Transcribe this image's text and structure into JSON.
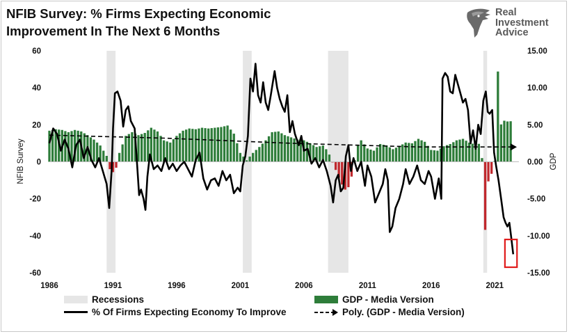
{
  "title_line1": "NFIB Survey:  % Firms Expecting Economic",
  "title_line2": "Improvement In The  Next 6 Months",
  "logo": {
    "line1": "Real",
    "line2": "Investment",
    "line3": "Advice",
    "icon": "eagle-head-icon"
  },
  "legend": {
    "recessions": "Recessions",
    "gdp": "GDP - Media Version",
    "line": "% Of Firms Expecting Economy To Improve",
    "poly": "Poly. (GDP - Media Version)"
  },
  "colors": {
    "gdp_positive": "#2e7d3a",
    "gdp_negative": "#c0282d",
    "recession": "#e6e6e6",
    "line": "#000000",
    "highlight_box": "#e01a1a"
  },
  "chart_data": {
    "type": "bar+line",
    "title": "NFIB Survey:  % Firms Expecting Economic Improvement In The  Next 6 Months",
    "ylabel": "NFIB Survey",
    "y2label": "GDP",
    "xlim": [
      1986,
      2022.9
    ],
    "ylim": [
      -60,
      60
    ],
    "y2lim": [
      -15,
      15
    ],
    "xticks": [
      "1986",
      "1991",
      "1996",
      "2001",
      "2006",
      "2011",
      "2016",
      "2021"
    ],
    "yticks": [
      "60",
      "40",
      "20",
      "0",
      "-20",
      "-40",
      "-60"
    ],
    "y2ticks": [
      "15.00",
      "10.00",
      "5.00",
      "0.00",
      "-5.00",
      "-10.00",
      "-15.00"
    ],
    "grid": false,
    "legend_position": "bottom",
    "recessions": [
      [
        1990.5,
        1991.2
      ],
      [
        2001.2,
        2001.9
      ],
      [
        2007.9,
        2009.5
      ],
      [
        2020.1,
        2020.4
      ]
    ],
    "gdp_series": {
      "name": "GDP - Media Version",
      "points": [
        [
          1986,
          4.2
        ],
        [
          1986.5,
          4.4
        ],
        [
          1987,
          4.3
        ],
        [
          1987.5,
          4.0
        ],
        [
          1988,
          4.3
        ],
        [
          1988.5,
          4.1
        ],
        [
          1989,
          3.6
        ],
        [
          1989.5,
          3.0
        ],
        [
          1990,
          2.2
        ],
        [
          1990.5,
          0.8
        ],
        [
          1990.75,
          -1.0
        ],
        [
          1991,
          -1.4
        ],
        [
          1991.25,
          -0.8
        ],
        [
          1991.5,
          1.2
        ],
        [
          1992,
          3.5
        ],
        [
          1992.5,
          4.0
        ],
        [
          1993,
          3.6
        ],
        [
          1993.5,
          3.9
        ],
        [
          1994,
          4.6
        ],
        [
          1994.5,
          4.1
        ],
        [
          1995,
          2.9
        ],
        [
          1995.5,
          2.6
        ],
        [
          1996,
          3.5
        ],
        [
          1996.5,
          4.2
        ],
        [
          1997,
          4.5
        ],
        [
          1997.5,
          4.4
        ],
        [
          1998,
          4.6
        ],
        [
          1998.5,
          4.5
        ],
        [
          1999,
          4.6
        ],
        [
          1999.5,
          4.7
        ],
        [
          2000,
          4.9
        ],
        [
          2000.5,
          3.8
        ],
        [
          2001,
          1.2
        ],
        [
          2001.5,
          0.2
        ],
        [
          2002,
          1.2
        ],
        [
          2002.5,
          2.0
        ],
        [
          2003,
          2.9
        ],
        [
          2003.5,
          4.0
        ],
        [
          2004,
          4.1
        ],
        [
          2004.5,
          3.6
        ],
        [
          2005,
          3.3
        ],
        [
          2005.5,
          3.0
        ],
        [
          2006,
          2.9
        ],
        [
          2006.5,
          2.5
        ],
        [
          2007,
          2.0
        ],
        [
          2007.5,
          2.2
        ],
        [
          2007.9,
          1.4
        ],
        [
          2008.3,
          -0.3
        ],
        [
          2008.6,
          -1.5
        ],
        [
          2008.9,
          -2.8
        ],
        [
          2009.3,
          -3.9
        ],
        [
          2009.6,
          -3.2
        ],
        [
          2009.9,
          -0.8
        ],
        [
          2010.2,
          2.2
        ],
        [
          2010.5,
          2.9
        ],
        [
          2011,
          1.8
        ],
        [
          2011.5,
          1.5
        ],
        [
          2012,
          2.4
        ],
        [
          2012.5,
          2.2
        ],
        [
          2013,
          1.7
        ],
        [
          2013.5,
          2.1
        ],
        [
          2014,
          2.6
        ],
        [
          2014.5,
          2.5
        ],
        [
          2015,
          3.1
        ],
        [
          2015.5,
          2.7
        ],
        [
          2016,
          1.6
        ],
        [
          2016.5,
          1.5
        ],
        [
          2017,
          2.1
        ],
        [
          2017.5,
          2.4
        ],
        [
          2018,
          2.9
        ],
        [
          2018.5,
          3.1
        ],
        [
          2019,
          2.6
        ],
        [
          2019.5,
          2.3
        ],
        [
          2019.9,
          2.5
        ],
        [
          2020.0,
          0.5
        ],
        [
          2020.1,
          -5.0
        ],
        [
          2020.25,
          -9.2
        ],
        [
          2020.4,
          -3.0
        ],
        [
          2020.6,
          -2.3
        ],
        [
          2020.8,
          -1.4
        ],
        [
          2021.05,
          0.5
        ],
        [
          2021.25,
          12.2
        ],
        [
          2021.45,
          4.9
        ],
        [
          2021.65,
          5.5
        ],
        [
          2021.85,
          5.6
        ],
        [
          2022.05,
          5.4
        ],
        [
          2022.3,
          5.5
        ]
      ]
    },
    "poly_series": {
      "name": "Poly. (GDP - Media Version)",
      "points": [
        [
          1986,
          3.6
        ],
        [
          1995,
          3.2
        ],
        [
          2005,
          2.5
        ],
        [
          2015,
          2.0
        ],
        [
          2022.3,
          2.0
        ]
      ]
    },
    "line_series": {
      "name": "% Of Firms Expecting Economy To Improve",
      "points": [
        [
          1986,
          10
        ],
        [
          1986.3,
          18
        ],
        [
          1986.6,
          15
        ],
        [
          1986.9,
          6
        ],
        [
          1987.2,
          12
        ],
        [
          1987.5,
          7
        ],
        [
          1987.8,
          -3
        ],
        [
          1988.1,
          9
        ],
        [
          1988.4,
          12
        ],
        [
          1988.7,
          2
        ],
        [
          1989.0,
          8
        ],
        [
          1989.3,
          1
        ],
        [
          1989.6,
          -3
        ],
        [
          1989.9,
          2
        ],
        [
          1990.2,
          -5
        ],
        [
          1990.5,
          -12
        ],
        [
          1990.7,
          -25
        ],
        [
          1990.9,
          -4
        ],
        [
          1991.0,
          18
        ],
        [
          1991.15,
          37
        ],
        [
          1991.35,
          38
        ],
        [
          1991.6,
          33
        ],
        [
          1991.8,
          19
        ],
        [
          1992.0,
          28
        ],
        [
          1992.2,
          30
        ],
        [
          1992.4,
          22
        ],
        [
          1992.7,
          18
        ],
        [
          1992.9,
          -2
        ],
        [
          1993.05,
          -18
        ],
        [
          1993.2,
          -15
        ],
        [
          1993.4,
          -20
        ],
        [
          1993.55,
          -26
        ],
        [
          1993.7,
          -8
        ],
        [
          1993.9,
          4
        ],
        [
          1994.2,
          -4
        ],
        [
          1994.5,
          -2
        ],
        [
          1994.8,
          -5
        ],
        [
          1995.1,
          2
        ],
        [
          1995.4,
          -4
        ],
        [
          1995.7,
          -1
        ],
        [
          1996.0,
          -5
        ],
        [
          1996.3,
          -2
        ],
        [
          1996.6,
          0
        ],
        [
          1996.9,
          -4
        ],
        [
          1997.2,
          -8
        ],
        [
          1997.5,
          1
        ],
        [
          1997.8,
          5
        ],
        [
          1998.1,
          -9
        ],
        [
          1998.4,
          -15
        ],
        [
          1998.7,
          -10
        ],
        [
          1999.0,
          -9
        ],
        [
          1999.3,
          -13
        ],
        [
          1999.6,
          -5
        ],
        [
          1999.9,
          -10
        ],
        [
          2000.2,
          -7
        ],
        [
          2000.5,
          -17
        ],
        [
          2000.8,
          -14
        ],
        [
          2001.0,
          -16
        ],
        [
          2001.2,
          -2
        ],
        [
          2001.4,
          3
        ],
        [
          2001.6,
          14
        ],
        [
          2001.8,
          45
        ],
        [
          2002.0,
          38
        ],
        [
          2002.2,
          53
        ],
        [
          2002.4,
          36
        ],
        [
          2002.6,
          32
        ],
        [
          2002.8,
          43
        ],
        [
          2003.0,
          32
        ],
        [
          2003.2,
          28
        ],
        [
          2003.4,
          36
        ],
        [
          2003.7,
          49
        ],
        [
          2003.9,
          40
        ],
        [
          2004.1,
          34
        ],
        [
          2004.3,
          30
        ],
        [
          2004.5,
          27
        ],
        [
          2004.7,
          36
        ],
        [
          2004.9,
          16
        ],
        [
          2005.1,
          22
        ],
        [
          2005.3,
          15
        ],
        [
          2005.6,
          9
        ],
        [
          2005.8,
          14
        ],
        [
          2006.0,
          6
        ],
        [
          2006.3,
          7
        ],
        [
          2006.6,
          -1
        ],
        [
          2006.9,
          2
        ],
        [
          2007.2,
          -3
        ],
        [
          2007.5,
          1
        ],
        [
          2007.8,
          -5
        ],
        [
          2008.1,
          -13
        ],
        [
          2008.3,
          -22
        ],
        [
          2008.5,
          -10
        ],
        [
          2008.7,
          -7
        ],
        [
          2008.9,
          -16
        ],
        [
          2009.1,
          -14
        ],
        [
          2009.3,
          3
        ],
        [
          2009.5,
          9
        ],
        [
          2009.7,
          -5
        ],
        [
          2009.9,
          2
        ],
        [
          2010.2,
          -5
        ],
        [
          2010.5,
          0
        ],
        [
          2010.8,
          -13
        ],
        [
          2011.0,
          -2
        ],
        [
          2011.3,
          -8
        ],
        [
          2011.6,
          -22
        ],
        [
          2011.9,
          -17
        ],
        [
          2012.2,
          -12
        ],
        [
          2012.4,
          -4
        ],
        [
          2012.6,
          -10
        ],
        [
          2012.75,
          -38
        ],
        [
          2012.95,
          -35
        ],
        [
          2013.2,
          -25
        ],
        [
          2013.5,
          -20
        ],
        [
          2013.8,
          -12
        ],
        [
          2014.0,
          -4
        ],
        [
          2014.3,
          -12
        ],
        [
          2014.6,
          -8
        ],
        [
          2014.9,
          -2
        ],
        [
          2015.2,
          -10
        ],
        [
          2015.5,
          -12
        ],
        [
          2015.8,
          -5
        ],
        [
          2016.0,
          -8
        ],
        [
          2016.3,
          -20
        ],
        [
          2016.6,
          -9
        ],
        [
          2016.8,
          -20
        ],
        [
          2016.9,
          45
        ],
        [
          2017.1,
          48
        ],
        [
          2017.3,
          46
        ],
        [
          2017.5,
          38
        ],
        [
          2017.7,
          37
        ],
        [
          2017.9,
          47
        ],
        [
          2018.1,
          42
        ],
        [
          2018.3,
          37
        ],
        [
          2018.5,
          32
        ],
        [
          2018.7,
          34
        ],
        [
          2018.9,
          28
        ],
        [
          2019.1,
          10
        ],
        [
          2019.3,
          17
        ],
        [
          2019.5,
          7
        ],
        [
          2019.7,
          20
        ],
        [
          2019.9,
          15
        ],
        [
          2020.1,
          33
        ],
        [
          2020.3,
          38
        ],
        [
          2020.45,
          27
        ],
        [
          2020.6,
          26
        ],
        [
          2020.8,
          28
        ],
        [
          2020.95,
          5
        ],
        [
          2021.1,
          -2
        ],
        [
          2021.3,
          -10
        ],
        [
          2021.5,
          -20
        ],
        [
          2021.7,
          -30
        ],
        [
          2021.85,
          -33
        ],
        [
          2022.0,
          -35
        ],
        [
          2022.15,
          -33
        ],
        [
          2022.3,
          -41
        ],
        [
          2022.45,
          -50
        ]
      ]
    },
    "highlight_box": {
      "x": [
        2021.8,
        2022.75
      ],
      "y": [
        -57,
        -42
      ]
    }
  }
}
